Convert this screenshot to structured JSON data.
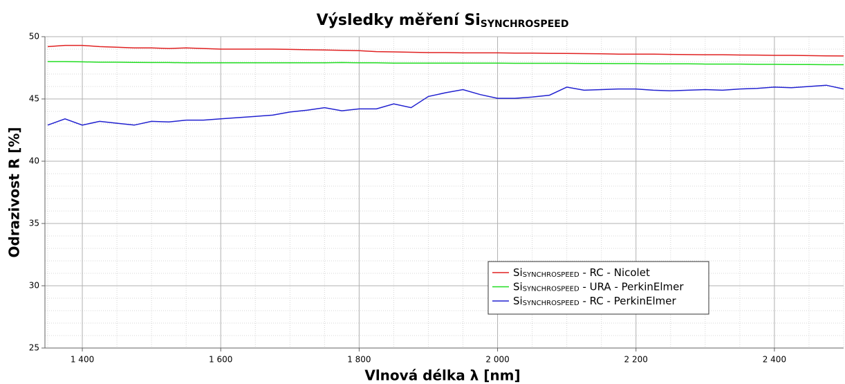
{
  "chart_data": {
    "type": "line",
    "title": {
      "text": "Výsledky měření Si",
      "sub": "SYNCHROSPEED"
    },
    "x_label": "Vlnová délka λ [nm]",
    "y_label": "Odrazivost R [%]",
    "xlim": [
      1346,
      2500
    ],
    "ylim": [
      25,
      50
    ],
    "xticks": [
      {
        "value": 1400,
        "label": "1 400"
      },
      {
        "value": 1600,
        "label": "1 600"
      },
      {
        "value": 1800,
        "label": "1 800"
      },
      {
        "value": 2000,
        "label": "2 000"
      },
      {
        "value": 2200,
        "label": "2 200"
      },
      {
        "value": 2400,
        "label": "2 400"
      }
    ],
    "yticks": [
      25,
      30,
      35,
      40,
      45,
      50
    ],
    "minor_xticks": [
      1350,
      1450,
      1500,
      1550,
      1650,
      1700,
      1750,
      1850,
      1900,
      1950,
      2050,
      2100,
      2150,
      2250,
      2300,
      2350,
      2450,
      2500
    ],
    "minor_yticks": [
      26,
      27,
      28,
      29,
      31,
      32,
      33,
      34,
      36,
      37,
      38,
      39,
      41,
      42,
      43,
      44,
      46,
      47,
      48,
      49
    ],
    "grid": true,
    "x": [
      1350,
      1375,
      1400,
      1425,
      1450,
      1475,
      1500,
      1525,
      1550,
      1575,
      1600,
      1625,
      1650,
      1675,
      1700,
      1725,
      1750,
      1775,
      1800,
      1825,
      1850,
      1875,
      1900,
      1925,
      1950,
      1975,
      2000,
      2025,
      2050,
      2075,
      2100,
      2125,
      2150,
      2175,
      2200,
      2225,
      2250,
      2275,
      2300,
      2325,
      2350,
      2375,
      2400,
      2425,
      2450,
      2475,
      2500
    ],
    "series": [
      {
        "name": {
          "base": "Si",
          "sub": "SYNCHROSPEED",
          "suffix": " - RC - Nicolet"
        },
        "color": "#e02020",
        "values": [
          49.2,
          49.3,
          49.3,
          49.2,
          49.15,
          49.1,
          49.1,
          49.05,
          49.1,
          49.05,
          49.0,
          49.0,
          49.0,
          49.0,
          48.98,
          48.95,
          48.93,
          48.9,
          48.88,
          48.8,
          48.78,
          48.75,
          48.72,
          48.72,
          48.7,
          48.7,
          48.7,
          48.68,
          48.68,
          48.66,
          48.65,
          48.64,
          48.62,
          48.6,
          48.6,
          48.6,
          48.58,
          48.56,
          48.55,
          48.55,
          48.53,
          48.52,
          48.5,
          48.5,
          48.48,
          48.46,
          48.45
        ]
      },
      {
        "name": {
          "base": "Si",
          "sub": "SYNCHROSPEED",
          "suffix": " - URA - PerkinElmer"
        },
        "color": "#20dd20",
        "values": [
          48.0,
          48.0,
          47.98,
          47.95,
          47.95,
          47.93,
          47.92,
          47.92,
          47.9,
          47.9,
          47.9,
          47.9,
          47.9,
          47.9,
          47.9,
          47.9,
          47.9,
          47.92,
          47.9,
          47.9,
          47.88,
          47.88,
          47.88,
          47.88,
          47.88,
          47.88,
          47.88,
          47.86,
          47.86,
          47.86,
          47.86,
          47.85,
          47.85,
          47.84,
          47.84,
          47.82,
          47.82,
          47.82,
          47.8,
          47.8,
          47.8,
          47.78,
          47.78,
          47.76,
          47.76,
          47.75,
          47.75
        ]
      },
      {
        "name": {
          "base": "Si",
          "sub": "SYNCHROSPEED",
          "suffix": " - RC - PerkinElmer"
        },
        "color": "#2020d0",
        "values": [
          42.9,
          43.4,
          42.9,
          43.2,
          43.05,
          42.9,
          43.2,
          43.15,
          43.3,
          43.3,
          43.4,
          43.5,
          43.6,
          43.7,
          43.95,
          44.1,
          44.3,
          44.05,
          44.2,
          44.2,
          44.6,
          44.3,
          45.2,
          45.5,
          45.75,
          45.35,
          45.05,
          45.05,
          45.15,
          45.3,
          45.95,
          45.7,
          45.75,
          45.8,
          45.8,
          45.7,
          45.65,
          45.7,
          45.75,
          45.7,
          45.8,
          45.85,
          45.95,
          45.9,
          46.0,
          46.1,
          45.8
        ]
      }
    ]
  }
}
